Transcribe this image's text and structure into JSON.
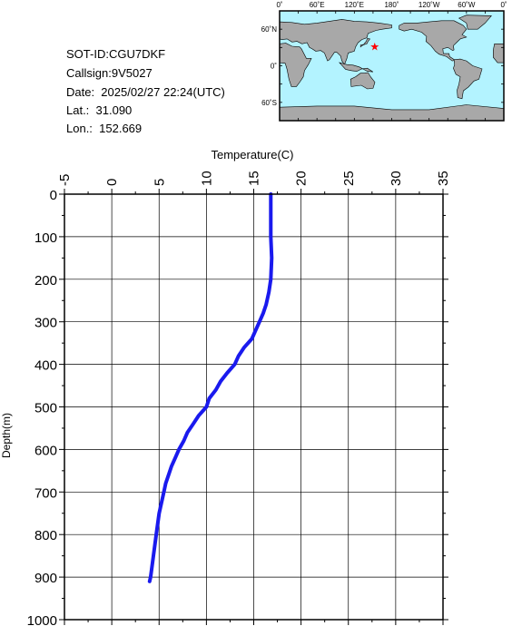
{
  "info": {
    "sot_id": "SOT-ID:CGU7DKF",
    "callsign": "Callsign:9V5027",
    "date": "Date:  2025/02/27 22:24(UTC)",
    "lat": "Lat.:  31.090",
    "lon": "Lon.:  152.669"
  },
  "map": {
    "lon_labels": [
      "0˚",
      "60˚E",
      "120˚E",
      "180˚",
      "120˚W",
      "60˚W",
      "0˚"
    ],
    "lat_labels": [
      "60˚N",
      "0˚",
      "60˚S"
    ],
    "marker": {
      "lat": 31.09,
      "lon": 152.669
    },
    "colors": {
      "ocean": "#b3f3ff",
      "land": "#a8a8a8",
      "marker": "#ff0000"
    }
  },
  "chart_data": {
    "type": "line",
    "xlabel": "Temperature(C)",
    "ylabel": "Depth(m)",
    "xlim": [
      -5,
      35
    ],
    "ylim": [
      1000,
      0
    ],
    "x_ticks": [
      "-5",
      "0",
      "5",
      "10",
      "15",
      "20",
      "25",
      "30",
      "35"
    ],
    "y_ticks": [
      "0",
      "100",
      "200",
      "300",
      "400",
      "500",
      "600",
      "700",
      "800",
      "900",
      "1000"
    ],
    "grid": true,
    "line_color": "#1a1aee",
    "series": [
      {
        "depth": [
          0,
          50,
          100,
          150,
          200,
          230,
          260,
          280,
          300,
          320,
          340,
          360,
          380,
          400,
          420,
          440,
          460,
          480,
          500,
          520,
          540,
          560,
          580,
          600,
          620,
          640,
          660,
          680,
          700,
          750,
          800,
          850,
          900,
          910
        ],
        "temperature": [
          16.8,
          16.8,
          16.8,
          16.9,
          16.8,
          16.6,
          16.3,
          16.0,
          15.6,
          15.2,
          14.8,
          14.0,
          13.4,
          13.0,
          12.2,
          11.5,
          11.0,
          10.3,
          10.0,
          9.2,
          8.6,
          8.0,
          7.6,
          7.1,
          6.7,
          6.3,
          6.0,
          5.7,
          5.5,
          5.0,
          4.7,
          4.4,
          4.1,
          4.0
        ]
      }
    ]
  }
}
